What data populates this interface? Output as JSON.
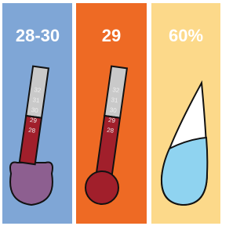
{
  "panels": [
    {
      "label": "28-30",
      "scale": [
        32,
        31,
        30,
        29,
        28
      ]
    },
    {
      "label": "29",
      "scale": [
        32,
        31,
        30,
        29,
        28
      ]
    },
    {
      "label": "60%"
    }
  ]
}
